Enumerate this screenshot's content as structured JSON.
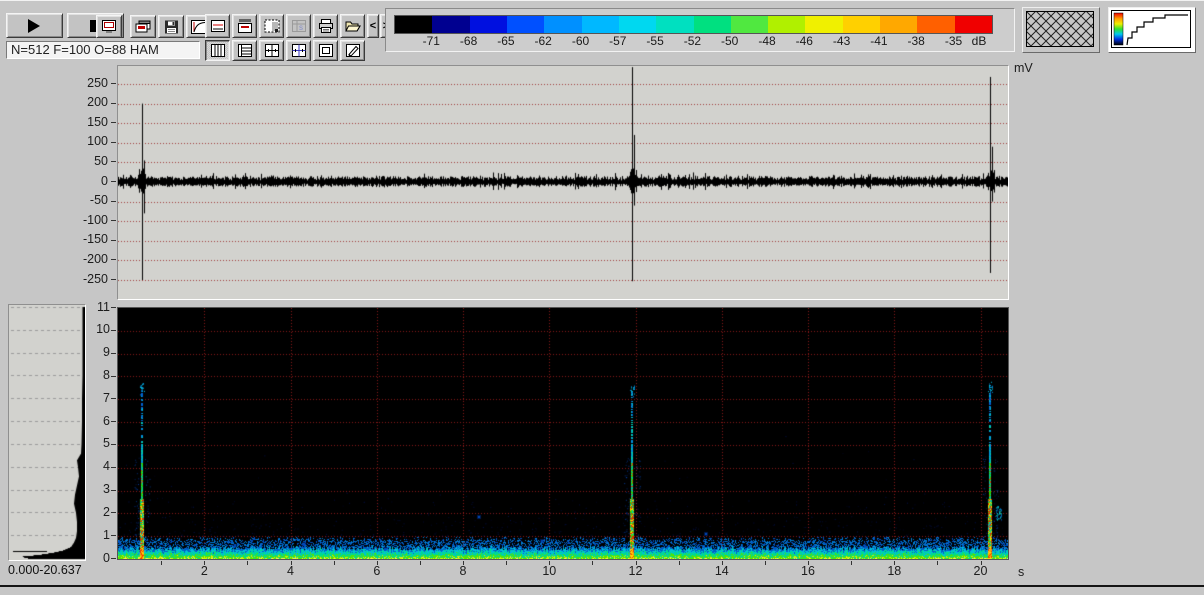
{
  "toolbar": {
    "status_text": "N=512 F=100 O=88 HAM"
  },
  "colorbar": {
    "unit_label": "dB",
    "tick_labels": [
      "-71",
      "-68",
      "-65",
      "-62",
      "-60",
      "-57",
      "-55",
      "-52",
      "-50",
      "-48",
      "-46",
      "-43",
      "-41",
      "-38",
      "-35"
    ],
    "segment_colors": [
      "#000000",
      "#000090",
      "#0010e0",
      "#0050ff",
      "#0090ff",
      "#00b8ff",
      "#00d8f0",
      "#00e0c0",
      "#00e080",
      "#50e840",
      "#b0f000",
      "#f0f000",
      "#ffd000",
      "#ffa800",
      "#ff6000",
      "#f00000"
    ]
  },
  "waveform_panel": {
    "unit_label": "mV"
  },
  "spectrogram_panel": {
    "x_unit_label": "s"
  },
  "histogram_panel": {
    "range_label": "0.000-20.637"
  },
  "chart_data": [
    {
      "id": "waveform",
      "type": "line",
      "ylabel": "mV",
      "yticks": [
        250,
        200,
        150,
        100,
        50,
        0,
        -50,
        -100,
        -150,
        -200,
        -250
      ],
      "ylim": [
        -297,
        296
      ],
      "xlim": [
        0,
        20.637
      ],
      "background": "#d2d2ce",
      "grid_color": "#a03838",
      "line_color": "#000000",
      "noise_mean_amplitude_mv": 9,
      "spikes": [
        {
          "t": 0.556,
          "peak": 200,
          "trough": -250,
          "secondary_peak": 55,
          "secondary_trough": -80
        },
        {
          "t": 11.92,
          "peak": 293,
          "trough": -253,
          "secondary_peak": 120,
          "secondary_trough": -60
        },
        {
          "t": 20.22,
          "peak": 268,
          "trough": -232,
          "secondary_peak": 90,
          "secondary_trough": -50
        }
      ]
    },
    {
      "id": "spectrogram",
      "type": "heatmap",
      "xlabel": "s",
      "xticks": [
        2,
        4,
        6,
        8,
        10,
        12,
        14,
        16,
        18,
        20
      ],
      "yticks": [
        11,
        10,
        9,
        8,
        7,
        6,
        5,
        4,
        3,
        2,
        1,
        0
      ],
      "xlim": [
        0,
        20.637
      ],
      "ylim": [
        0,
        11
      ],
      "background": "#000000",
      "grid_color": "#8b1a1a",
      "noise_band_top_khz": 0.55,
      "events": [
        {
          "t": 0.556,
          "f_max": 7.5
        },
        {
          "t": 11.92,
          "f_max": 7.4
        },
        {
          "t": 20.22,
          "f_max": 7.6,
          "side_blob_f": 2.0
        }
      ],
      "speckles": [
        [
          8.35,
          1.9
        ],
        [
          13.6,
          1.15
        ],
        [
          4.3,
          0.7
        ],
        [
          6.2,
          0.5
        ],
        [
          17.3,
          0.6
        ],
        [
          9.8,
          0.85
        ],
        [
          2.7,
          0.6
        ],
        [
          15.2,
          0.5
        ]
      ]
    },
    {
      "id": "avg_spectrum",
      "type": "area",
      "range_label": "0.000-20.637",
      "profile": [
        [
          0,
          55
        ],
        [
          0.08,
          62
        ],
        [
          0.15,
          45
        ],
        [
          0.25,
          30
        ],
        [
          0.35,
          20
        ],
        [
          0.5,
          12
        ],
        [
          0.7,
          9
        ],
        [
          0.9,
          7
        ],
        [
          1.2,
          6
        ],
        [
          1.6,
          6
        ],
        [
          2.0,
          7
        ],
        [
          2.4,
          9
        ],
        [
          2.8,
          8
        ],
        [
          3.2,
          6
        ],
        [
          3.6,
          4
        ],
        [
          4.0,
          5
        ],
        [
          4.3,
          6
        ],
        [
          4.6,
          2
        ],
        [
          5.0,
          1.5
        ],
        [
          6,
          1
        ],
        [
          7,
          1
        ],
        [
          8,
          0.5
        ],
        [
          9,
          0.5
        ],
        [
          10,
          0.5
        ],
        [
          11,
          0.5
        ]
      ]
    }
  ]
}
